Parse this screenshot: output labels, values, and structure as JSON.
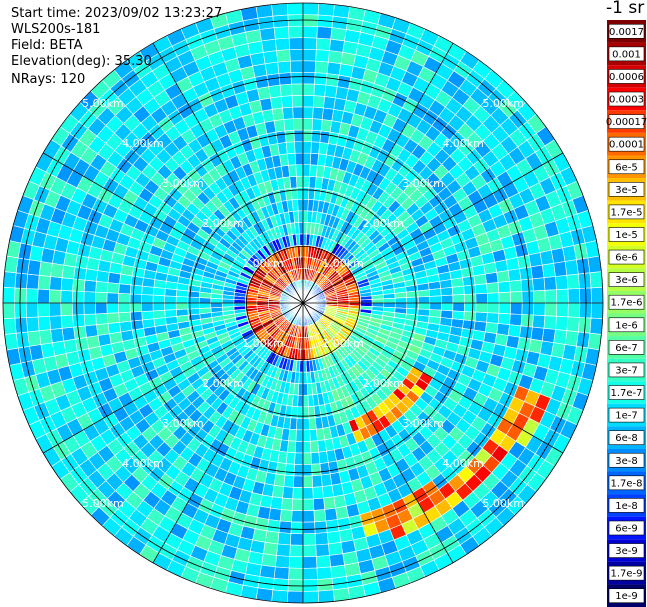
{
  "header": {
    "start_time": "Start time: 2023/09/02 13:23:27",
    "instrument": "WLS200s-181",
    "field": "Field: BETA",
    "elevation": "Elevation(deg): 35.30",
    "nrays": "NRays: 120"
  },
  "colorbar": {
    "title": "-1 sr",
    "labels": [
      "0.0017",
      "0.001",
      "0.0006",
      "0.0003",
      "0.00017",
      "0.0001",
      "6e-5",
      "3e-5",
      "1.7e-5",
      "1e-5",
      "6e-6",
      "3e-6",
      "1.7e-6",
      "1e-6",
      "6e-7",
      "3e-7",
      "1.7e-7",
      "1e-7",
      "6e-8",
      "3e-8",
      "1.7e-8",
      "1e-8",
      "6e-9",
      "3e-9",
      "1.7e-9",
      "1e-9"
    ],
    "colors": [
      "#7f0000",
      "#a80000",
      "#d40000",
      "#ff0000",
      "#ff3a00",
      "#ff6a00",
      "#ff9400",
      "#ffbe00",
      "#ffe400",
      "#f4ff00",
      "#d2ff24",
      "#b4ff44",
      "#94ff64",
      "#74ff84",
      "#54ffa4",
      "#34ffc4",
      "#14ffe8",
      "#00dcff",
      "#00b4ff",
      "#008cff",
      "#0064ff",
      "#0040ff",
      "#0014ff",
      "#0000d4",
      "#0000a0",
      "#00006a"
    ]
  },
  "chart_data": {
    "type": "heatmap",
    "projection": "polar (PPI scan)",
    "field": "BETA",
    "nrays": 120,
    "elevation_deg": 35.3,
    "range_ring_labels_km": [
      "1.00km",
      "2.00km",
      "3.00km",
      "4.00km",
      "5.00km"
    ],
    "range_rings_km": [
      1,
      2,
      3,
      4,
      5
    ],
    "max_range_km": 5.3,
    "colorscale": "jet (log)",
    "features": [
      {
        "desc": "high-backscatter ring near center",
        "range_km": [
          0.55,
          0.95
        ],
        "value": "0.0001-0.0006"
      },
      {
        "desc": "arc to south-east",
        "azimuth_deg": [
          120,
          160
        ],
        "range_km": [
          2.3,
          2.6
        ],
        "value": "1e-5-1e-4"
      },
      {
        "desc": "outer arc to south-east",
        "azimuth_deg": [
          110,
          165
        ],
        "range_km": [
          4.1,
          4.6
        ],
        "value": "1e-6-1e-4"
      }
    ]
  }
}
